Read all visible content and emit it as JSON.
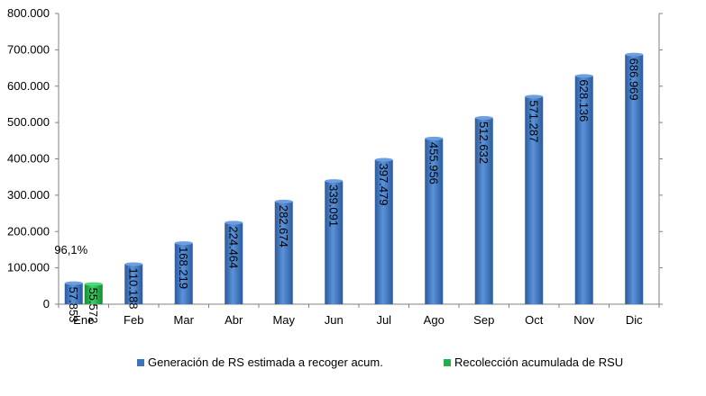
{
  "chart_data": {
    "type": "bar",
    "categories": [
      "Ene",
      "Feb",
      "Mar",
      "Abr",
      "May",
      "Jun",
      "Jul",
      "Ago",
      "Sep",
      "Oct",
      "Nov",
      "Dic"
    ],
    "series": [
      {
        "name": "Generación de RS estimada a recoger acum.",
        "color": "#3d74c0",
        "values": [
          57853,
          110188,
          168219,
          224464,
          282674,
          339091,
          397479,
          455956,
          512632,
          571287,
          628136,
          686969
        ],
        "labels": [
          "57.853",
          "110.188",
          "168.219",
          "224.464",
          "282.674",
          "339.091",
          "397.479",
          "455.956",
          "512.632",
          "571.287",
          "628.136",
          "686.969"
        ]
      },
      {
        "name": "Recolección acumulada de RSU",
        "color": "#22b04a",
        "values": [
          55572,
          null,
          null,
          null,
          null,
          null,
          null,
          null,
          null,
          null,
          null,
          null
        ],
        "labels": [
          "55.572",
          "",
          "",
          "",
          "",
          "",
          "",
          "",
          "",
          "",
          "",
          ""
        ]
      }
    ],
    "annotation": "96,1%",
    "ylim": [
      0,
      800000
    ],
    "yticks": [
      "0",
      "100.000",
      "200.000",
      "300.000",
      "400.000",
      "500.000",
      "600.000",
      "700.000",
      "800.000"
    ],
    "y2ticks": 9,
    "legend_position": "bottom",
    "grid": false
  }
}
